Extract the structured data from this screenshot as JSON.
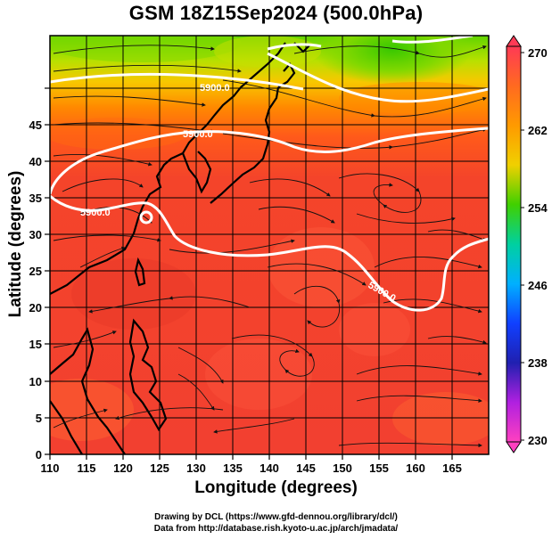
{
  "title": "GSM 18Z15Sep2024 (500.0hPa)",
  "xlabel": "Longitude (degrees)",
  "ylabel": "Latitude  (degrees)",
  "x_ticks": [
    "110",
    "115",
    "120",
    "125",
    "130",
    "135",
    "140",
    "145",
    "150",
    "155",
    "160",
    "165"
  ],
  "y_ticks": [
    "0",
    "5",
    "10",
    "15",
    "20",
    "25",
    "30",
    "35",
    "40",
    "45"
  ],
  "colorbar": {
    "ticks": [
      "270",
      "262",
      "254",
      "246",
      "238",
      "230"
    ],
    "colors": [
      "#ff3a55",
      "#ff8000",
      "#f8d800",
      "#3ad000",
      "#00d0a0",
      "#00b0ff",
      "#1040ff",
      "#2020b0",
      "#b020e0",
      "#ff40c0"
    ]
  },
  "contours": {
    "labels": [
      "5900.0",
      "5900.0",
      "5900.0",
      "5900.0"
    ]
  },
  "credits": {
    "line1": "Drawing by DCL (https://www.gfd-dennou.org/library/dcl/)",
    "line2": "Data from http://database.rish.kyoto-u.ac.jp/arch/jmadata/"
  }
}
